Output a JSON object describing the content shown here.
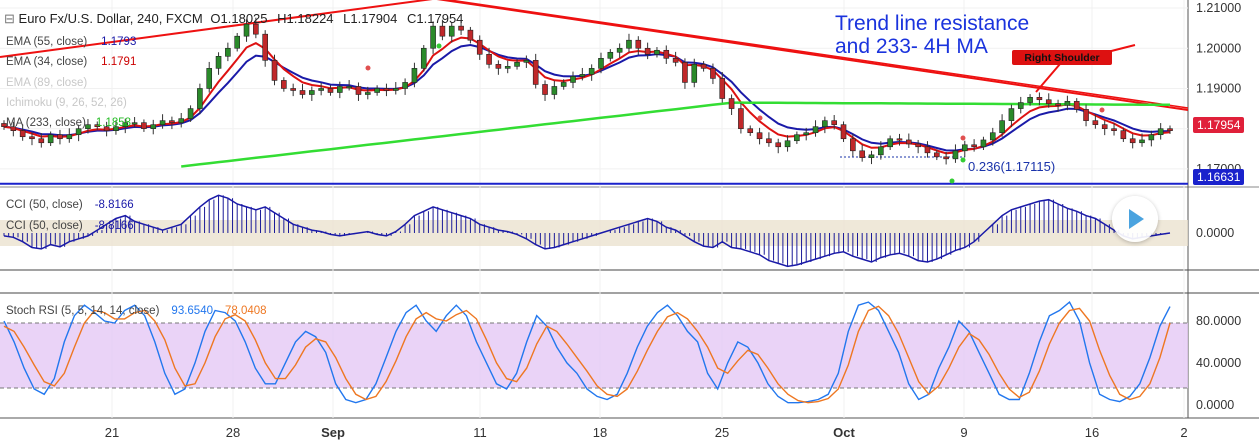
{
  "header": {
    "collapse_glyph": "⊟",
    "symbol": "Euro Fx/U.S. Dollar, 240, FXCM",
    "ohlc": [
      {
        "label": "O",
        "value": "1.18025"
      },
      {
        "label": "H",
        "value": "1.18224"
      },
      {
        "label": "L",
        "value": "1.17904"
      },
      {
        "label": "C",
        "value": "1.17954"
      }
    ]
  },
  "indicators": [
    {
      "name": "EMA (55, close)",
      "value": "1.1793",
      "color": "#1a1aa8"
    },
    {
      "name": "EMA (34, close)",
      "value": "1.1791",
      "color": "#cc0000"
    },
    {
      "name": "EMA (89, close)",
      "value": "",
      "color": "#cccccc"
    },
    {
      "name": "Ichimoku (9, 26, 52, 26)",
      "value": "",
      "color": "#cccccc"
    },
    {
      "name": "MA (233, close)",
      "value": "1.1858",
      "color": "#22bb22"
    }
  ],
  "annotations": {
    "trend_text_1": "Trend line resistance",
    "trend_text_2": "and 233- 4H MA",
    "right_shoulder": "Right Shoulder",
    "fib_label": "0.236(1.17115)"
  },
  "price_axis": {
    "ticks": [
      "1.21000",
      "1.20000",
      "1.19000",
      "1.18000",
      "1.17000"
    ],
    "last_price": "1.17954",
    "support_price": "1.16631"
  },
  "x_axis": {
    "labels": [
      {
        "text": "21",
        "bold": false
      },
      {
        "text": "28",
        "bold": false
      },
      {
        "text": "Sep",
        "bold": true
      },
      {
        "text": "11",
        "bold": false
      },
      {
        "text": "18",
        "bold": false
      },
      {
        "text": "25",
        "bold": false
      },
      {
        "text": "Oct",
        "bold": true
      },
      {
        "text": "9",
        "bold": false
      },
      {
        "text": "16",
        "bold": false
      },
      {
        "text": "2",
        "bold": false
      }
    ]
  },
  "cci_panel": {
    "labels": [
      {
        "name": "CCI (50, close)",
        "value": "-8.8166"
      },
      {
        "name": "CCI (50, close)",
        "value": "-8.8166"
      }
    ],
    "ticks": [
      "0.0000"
    ]
  },
  "stoch_panel": {
    "name": "Stoch RSI (5, 5, 14, 14, close)",
    "k_value": "93.6540",
    "d_value": "78.0408",
    "ticks": [
      "80.0000",
      "40.0000",
      "0.0000"
    ]
  },
  "chart_data": [
    {
      "type": "line",
      "description": "EURUSD 4H candlestick price panel",
      "close": [
        1.1805,
        1.1795,
        1.178,
        1.1775,
        1.1765,
        1.1785,
        1.1775,
        1.1785,
        1.18,
        1.181,
        1.1805,
        1.1795,
        1.1805,
        1.1815,
        1.1815,
        1.18,
        1.181,
        1.182,
        1.1815,
        1.1825,
        1.185,
        1.19,
        1.195,
        1.198,
        1.2,
        1.203,
        1.206,
        1.2035,
        1.197,
        1.192,
        1.19,
        1.1895,
        1.1885,
        1.1895,
        1.19,
        1.189,
        1.1905,
        1.1905,
        1.1885,
        1.189,
        1.19,
        1.1895,
        1.19,
        1.1915,
        1.195,
        1.2,
        1.2055,
        1.203,
        1.2055,
        1.2045,
        1.202,
        1.1985,
        1.196,
        1.195,
        1.1955,
        1.1965,
        1.197,
        1.191,
        1.1885,
        1.1905,
        1.1915,
        1.193,
        1.1935,
        1.195,
        1.1975,
        1.199,
        1.2,
        1.202,
        1.2,
        1.1985,
        1.1995,
        1.1975,
        1.1965,
        1.1915,
        1.196,
        1.195,
        1.1925,
        1.1875,
        1.185,
        1.18,
        1.179,
        1.1775,
        1.1765,
        1.1755,
        1.177,
        1.1785,
        1.179,
        1.1805,
        1.182,
        1.181,
        1.1775,
        1.1745,
        1.1728,
        1.1735,
        1.1755,
        1.1775,
        1.1772,
        1.1762,
        1.1755,
        1.174,
        1.173,
        1.1725,
        1.1745,
        1.176,
        1.1755,
        1.1772,
        1.179,
        1.182,
        1.185,
        1.1865,
        1.1878,
        1.1872,
        1.1862,
        1.1858,
        1.1868,
        1.1848,
        1.182,
        1.181,
        1.18,
        1.1795,
        1.1775,
        1.1765,
        1.1772,
        1.1785,
        1.18,
        1.1795
      ],
      "ema55_last": 1.1793,
      "ema34_last": 1.1791,
      "ma233_last": 1.1858,
      "last_close": 1.17954,
      "support_level": 1.16631,
      "fib_0236": 1.17115,
      "ylim": [
        1.1655,
        1.212
      ]
    },
    {
      "type": "area",
      "description": "CCI (50, close) histogram",
      "values": [
        -20,
        -30,
        -60,
        -100,
        -110,
        -80,
        -95,
        -60,
        -40,
        -20,
        20,
        60,
        100,
        120,
        80,
        60,
        40,
        20,
        40,
        60,
        120,
        180,
        230,
        260,
        240,
        200,
        180,
        160,
        180,
        140,
        100,
        60,
        40,
        20,
        10,
        -10,
        -20,
        -10,
        0,
        10,
        -10,
        -20,
        10,
        60,
        120,
        150,
        180,
        160,
        140,
        120,
        100,
        60,
        40,
        20,
        10,
        -10,
        -40,
        -80,
        -110,
        -100,
        -80,
        -60,
        -40,
        -20,
        0,
        20,
        40,
        60,
        80,
        100,
        80,
        40,
        20,
        -20,
        -60,
        -90,
        -100,
        -60,
        -100,
        -110,
        -130,
        -150,
        -190,
        -210,
        -230,
        -220,
        -200,
        -180,
        -160,
        -140,
        -130,
        -160,
        -180,
        -200,
        -170,
        -150,
        -140,
        -160,
        -190,
        -200,
        -180,
        -150,
        -120,
        -100,
        -60,
        0,
        60,
        120,
        160,
        180,
        200,
        220,
        230,
        200,
        170,
        150,
        120,
        100,
        60,
        20,
        -20,
        -40,
        -30,
        -20,
        -10,
        0
      ],
      "last_value": -8.8166
    },
    {
      "type": "line",
      "description": "Stoch RSI (5, 5, 14, 14, close)",
      "series": [
        {
          "name": "K",
          "values": [
            80,
            60,
            35,
            15,
            10,
            25,
            60,
            85,
            95,
            88,
            80,
            78,
            90,
            95,
            85,
            60,
            30,
            10,
            15,
            40,
            70,
            90,
            88,
            80,
            60,
            35,
            20,
            20,
            40,
            60,
            70,
            65,
            50,
            20,
            5,
            2,
            5,
            20,
            45,
            70,
            88,
            95,
            80,
            70,
            85,
            95,
            85,
            60,
            40,
            20,
            15,
            30,
            60,
            85,
            75,
            55,
            40,
            30,
            15,
            8,
            5,
            10,
            30,
            55,
            75,
            88,
            95,
            85,
            70,
            60,
            30,
            15,
            40,
            60,
            55,
            40,
            20,
            8,
            2,
            2,
            3,
            5,
            10,
            30,
            70,
            95,
            98,
            90,
            70,
            50,
            20,
            5,
            10,
            35,
            55,
            80,
            70,
            50,
            30,
            10,
            5,
            5,
            30,
            60,
            85,
            90,
            98,
            80,
            40,
            10,
            5,
            3,
            8,
            20,
            45,
            75,
            93.654
          ]
        },
        {
          "name": "D",
          "values": [
            75,
            70,
            55,
            38,
            22,
            18,
            30,
            55,
            78,
            90,
            88,
            82,
            82,
            88,
            90,
            80,
            62,
            35,
            18,
            20,
            40,
            65,
            82,
            86,
            80,
            62,
            40,
            25,
            25,
            38,
            55,
            63,
            60,
            45,
            25,
            10,
            5,
            8,
            22,
            42,
            65,
            82,
            88,
            82,
            80,
            86,
            90,
            82,
            62,
            40,
            25,
            22,
            35,
            58,
            75,
            70,
            58,
            45,
            32,
            18,
            10,
            8,
            15,
            32,
            52,
            70,
            84,
            88,
            82,
            70,
            55,
            35,
            30,
            42,
            52,
            48,
            35,
            20,
            10,
            4,
            2,
            3,
            6,
            15,
            38,
            70,
            90,
            94,
            85,
            68,
            45,
            22,
            10,
            18,
            35,
            55,
            68,
            62,
            48,
            30,
            15,
            7,
            12,
            32,
            58,
            78,
            90,
            92,
            80,
            52,
            28,
            10,
            5,
            8,
            20,
            45,
            78.0408
          ]
        }
      ],
      "ylim": [
        -5,
        100
      ]
    }
  ]
}
